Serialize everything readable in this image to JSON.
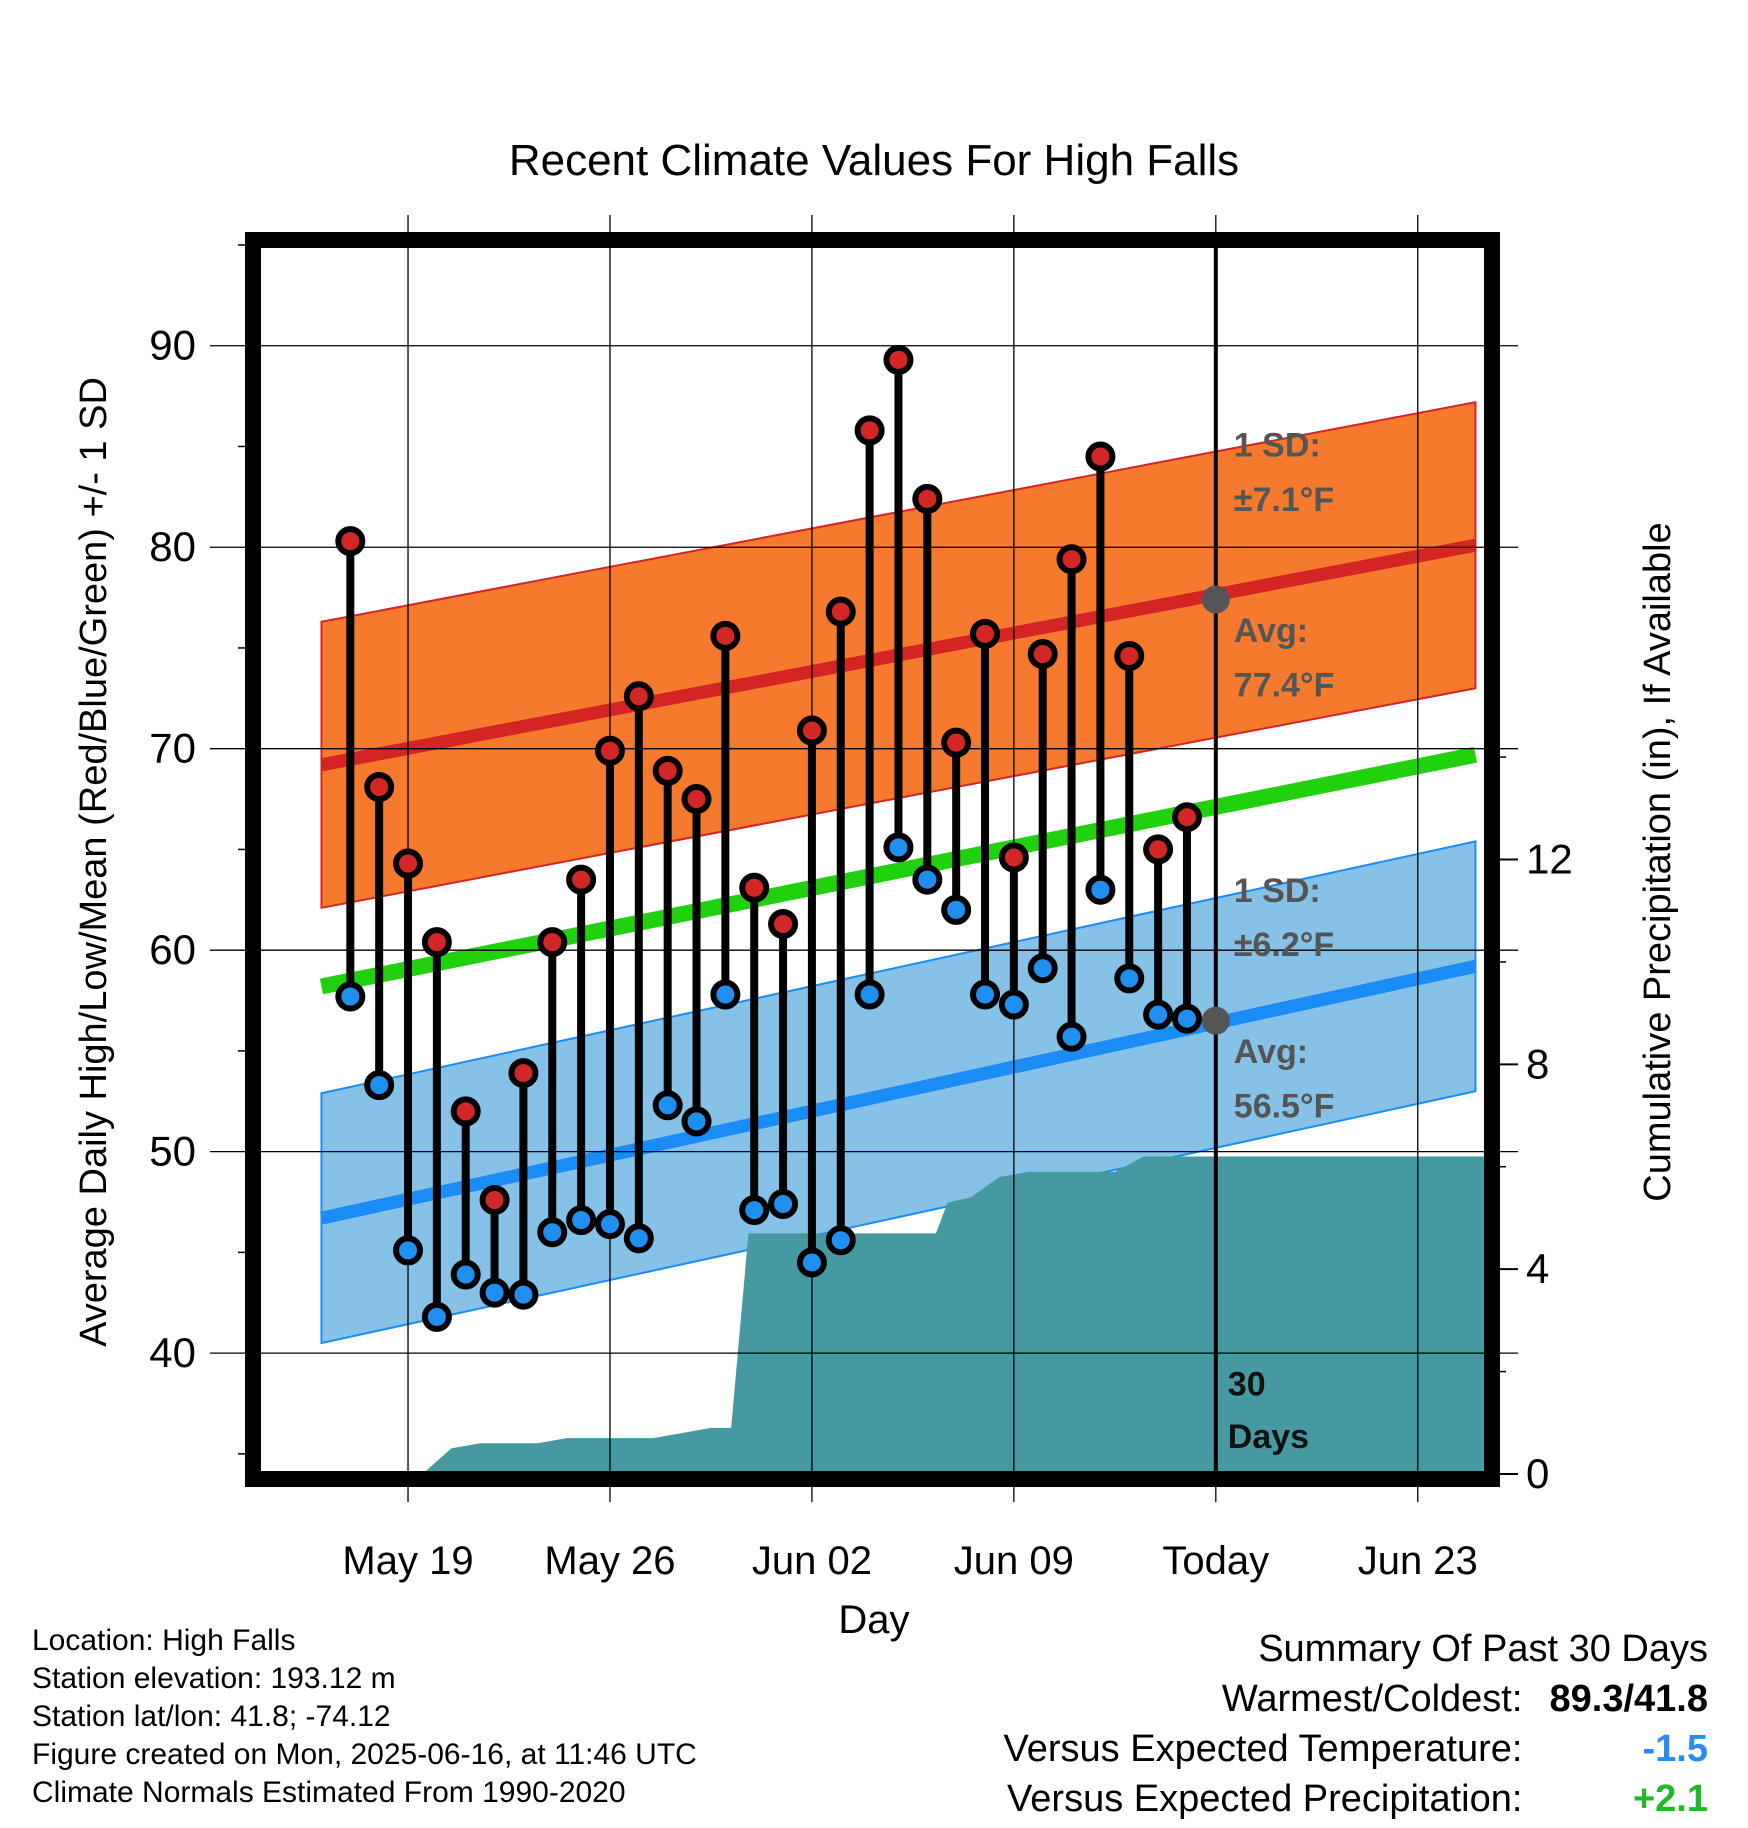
{
  "chart_data": {
    "type": "line",
    "title": "Recent Climate Values For High Falls",
    "xlabel": "Day",
    "ylabel": "Average Daily High/Low/Mean (Red/Blue/Green) +/- 1 SD",
    "y2label": "Cumulative Precipitation (in), If Available",
    "x_ticks": [
      "May 19",
      "May 26",
      "Jun 02",
      "Jun 09",
      "Today",
      "Jun 23"
    ],
    "x_range_days": [
      -33.2,
      9.4
    ],
    "x_tick_days": [
      -28,
      -21,
      -14,
      -7,
      0,
      7
    ],
    "ylim": [
      34,
      95
    ],
    "yticks": [
      40,
      50,
      60,
      70,
      80,
      90
    ],
    "y2lim": [
      0,
      24
    ],
    "y2ticks": [
      0,
      4,
      8,
      12
    ],
    "grid": true,
    "days": [
      -30,
      -29,
      -28,
      -27,
      -26,
      -25,
      -24,
      -23,
      -22,
      -21,
      -20,
      -19,
      -18,
      -17,
      -16,
      -15,
      -14,
      -13,
      -12,
      -11,
      -10,
      -9,
      -8,
      -7,
      -6,
      -5,
      -4,
      -3,
      -2,
      -1
    ],
    "series": [
      {
        "name": "High",
        "color": "#d32626",
        "values": [
          80.3,
          68.1,
          64.3,
          60.4,
          52.0,
          47.6,
          53.9,
          60.4,
          63.5,
          69.9,
          72.6,
          68.9,
          67.5,
          75.6,
          63.1,
          61.3,
          70.9,
          76.8,
          85.8,
          89.3,
          82.4,
          70.3,
          75.7,
          64.6,
          74.7,
          79.4,
          84.5,
          74.6,
          65.0,
          66.6
        ]
      },
      {
        "name": "Low",
        "color": "#2090f0",
        "values": [
          57.7,
          53.3,
          45.1,
          41.8,
          43.9,
          43.0,
          42.9,
          46.0,
          46.6,
          46.4,
          45.7,
          52.3,
          51.5,
          57.8,
          47.1,
          47.4,
          44.5,
          45.6,
          57.8,
          65.1,
          63.5,
          62.0,
          57.8,
          57.3,
          59.1,
          55.7,
          63.0,
          58.6,
          56.8,
          56.6
        ]
      }
    ],
    "normals": {
      "high_avg": [
        69.2,
        80.1
      ],
      "high_sd": 7.1,
      "mean_avg": [
        58.2,
        69.7
      ],
      "low_avg": [
        46.7,
        59.2
      ],
      "low_sd": 6.2,
      "range_days": [
        -31,
        9
      ]
    },
    "precip_cumulative": [
      [
        -31,
        0
      ],
      [
        -27.5,
        0
      ],
      [
        -26.5,
        0.5
      ],
      [
        -25.5,
        0.6
      ],
      [
        -24.5,
        0.6
      ],
      [
        -23.5,
        0.6
      ],
      [
        -22.5,
        0.7
      ],
      [
        -21.5,
        0.7
      ],
      [
        -20.5,
        0.7
      ],
      [
        -19.5,
        0.7
      ],
      [
        -18.5,
        0.8
      ],
      [
        -17.5,
        0.9
      ],
      [
        -16.8,
        0.9
      ],
      [
        -16.2,
        4.7
      ],
      [
        -15.5,
        4.7
      ],
      [
        -14.5,
        4.7
      ],
      [
        -13.5,
        4.7
      ],
      [
        -12.5,
        4.7
      ],
      [
        -11.5,
        4.7
      ],
      [
        -10.5,
        4.7
      ],
      [
        -9.7,
        4.7
      ],
      [
        -9.3,
        5.3
      ],
      [
        -8.5,
        5.4
      ],
      [
        -7.5,
        5.8
      ],
      [
        -6.5,
        5.9
      ],
      [
        -5.5,
        5.9
      ],
      [
        -4.5,
        5.9
      ],
      [
        -3.5,
        5.9
      ],
      [
        -2.5,
        6.2
      ],
      [
        -1.5,
        6.2
      ],
      [
        0,
        6.2
      ],
      [
        9.4,
        6.2
      ]
    ],
    "annotations": {
      "high_sd_label": "1 SD:",
      "high_sd_value": "±7.1°F",
      "high_avg_label": "Avg:",
      "high_avg_value": "77.4°F",
      "low_sd_label": "1 SD:",
      "low_sd_value": "±6.2°F",
      "low_avg_label": "Avg:",
      "low_avg_value": "56.5°F",
      "days_label_1": "30",
      "days_label_2": "Days",
      "today_high_avg": 77.4,
      "today_low_avg": 56.5
    },
    "colors": {
      "high_band": "#f57a2e",
      "high_line": "#d42424",
      "mean_line": "#22d10e",
      "low_band": "#86c2e8",
      "low_line": "#1a8cf5",
      "precip": "#4799a1",
      "annotation": "#555555",
      "today_dot": "#555555"
    }
  },
  "info": {
    "location": "Location: High Falls",
    "elevation": "Station elevation: 193.12 m",
    "latlon": "Station lat/lon: 41.8; -74.12",
    "created": "Figure created on Mon, 2025-06-16, at 11:46 UTC",
    "normals": "Climate Normals Estimated From 1990-2020"
  },
  "summary": {
    "heading": "Summary Of Past 30 Days",
    "warm_label": "Warmest/Coldest:",
    "warm_value": "89.3/41.8",
    "temp_label": "Versus Expected Temperature:",
    "temp_value": "-1.5",
    "temp_color": "#2a8cf0",
    "precip_label": "Versus Expected Precipitation:",
    "precip_value": "+2.1",
    "precip_color": "#22b82a"
  }
}
